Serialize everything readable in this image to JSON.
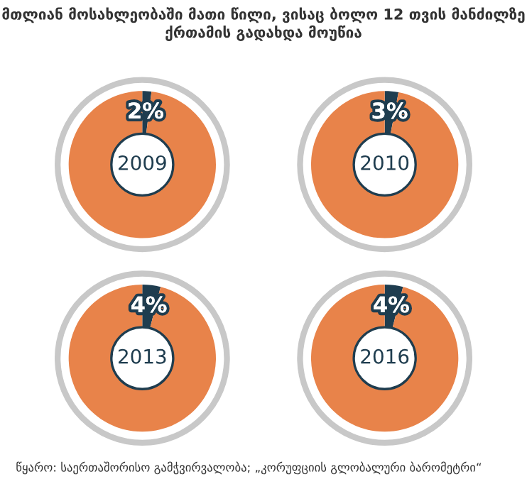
{
  "chart_data": [
    {
      "type": "donut",
      "title": "2009",
      "categories": [
        null,
        null
      ],
      "values": [
        2,
        98
      ],
      "value_labels": [
        "2%",
        null
      ],
      "colors": [
        "#1f3d4f",
        "#e8834a"
      ],
      "annotations": [
        "მთლიან მოსახლეობაში მათი წილი, ვისაც ბოლო 12 თვის მანძილზე ქრთამის გადახდა მოუწია"
      ]
    },
    {
      "type": "donut",
      "title": "2010",
      "categories": [
        null,
        null
      ],
      "values": [
        3,
        97
      ],
      "value_labels": [
        "3%",
        null
      ],
      "colors": [
        "#1f3d4f",
        "#e8834a"
      ]
    },
    {
      "type": "donut",
      "title": "2013",
      "categories": [
        null,
        null
      ],
      "values": [
        4,
        96
      ],
      "value_labels": [
        "4%",
        null
      ],
      "colors": [
        "#1f3d4f",
        "#e8834a"
      ]
    },
    {
      "type": "donut",
      "title": "2016",
      "categories": [
        null,
        null
      ],
      "values": [
        4,
        96
      ],
      "value_labels": [
        "4%",
        null
      ],
      "colors": [
        "#1f3d4f",
        "#e8834a"
      ],
      "annotations": [
        "წყარო: საერთაშორისო გამჭვირვალობა; „კორუფციის გლობალური ბარომეტრი“"
      ]
    }
  ]
}
